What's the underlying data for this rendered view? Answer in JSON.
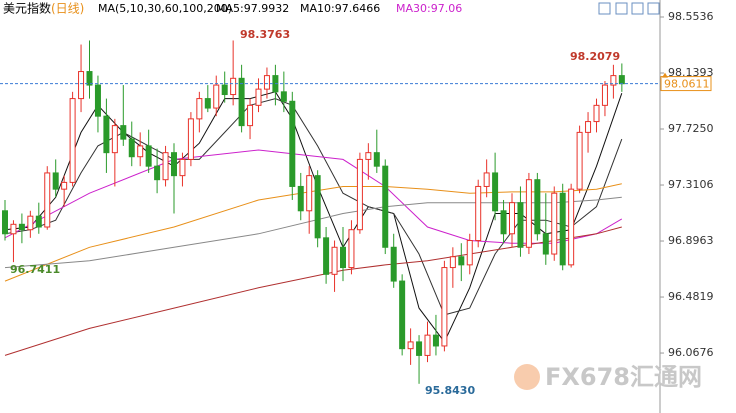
{
  "chart_data": {
    "type": "candlestick",
    "title": "美元指数",
    "subtitle": "(日线)",
    "ma_legend": [
      "MA(5,10,30,60,100,200)",
      "MA5:97.9932",
      "MA10:97.6466",
      "MA30:97.06"
    ],
    "ylim": [
      95.624,
      98.5536
    ],
    "yticks": [
      98.5536,
      98.1393,
      {
        "value": 97.725,
        "label": "97.7250"
      },
      97.3106,
      96.8963,
      96.4819,
      96.0676
    ],
    "last_price": {
      "value": 98.0611,
      "label": "98.0611"
    },
    "annotations": [
      "98.3763",
      "98.2079",
      "96.7411",
      "95.8430"
    ],
    "watermark": "FX678汇通网",
    "up_color": "#e8322a",
    "down_color": "#2a9a2a",
    "candles": [
      [
        97.12,
        97.2,
        96.9,
        96.95
      ],
      [
        96.95,
        97.05,
        96.74,
        97.02
      ],
      [
        97.02,
        97.1,
        96.88,
        96.98
      ],
      [
        96.98,
        97.12,
        96.92,
        97.08
      ],
      [
        97.08,
        97.18,
        96.95,
        97.0
      ],
      [
        97.0,
        97.45,
        96.98,
        97.4
      ],
      [
        97.4,
        97.5,
        97.22,
        97.28
      ],
      [
        97.28,
        97.38,
        97.15,
        97.33
      ],
      [
        97.33,
        98.0,
        97.3,
        97.95
      ],
      [
        97.95,
        98.35,
        97.85,
        98.15
      ],
      [
        98.15,
        98.38,
        97.95,
        98.05
      ],
      [
        98.05,
        98.12,
        97.7,
        97.82
      ],
      [
        97.82,
        97.95,
        97.4,
        97.55
      ],
      [
        97.55,
        97.8,
        97.3,
        97.75
      ],
      [
        97.75,
        98.05,
        97.6,
        97.65
      ],
      [
        97.65,
        97.78,
        97.45,
        97.52
      ],
      [
        97.52,
        97.7,
        97.45,
        97.6
      ],
      [
        97.6,
        97.72,
        97.4,
        97.45
      ],
      [
        97.45,
        97.58,
        97.25,
        97.35
      ],
      [
        97.35,
        97.6,
        97.3,
        97.55
      ],
      [
        97.55,
        97.62,
        97.1,
        97.38
      ],
      [
        97.38,
        97.55,
        97.3,
        97.5
      ],
      [
        97.5,
        97.85,
        97.45,
        97.8
      ],
      [
        97.8,
        98.0,
        97.7,
        97.95
      ],
      [
        97.95,
        98.05,
        97.85,
        97.88
      ],
      [
        97.88,
        98.12,
        97.82,
        98.05
      ],
      [
        98.05,
        98.15,
        97.92,
        97.98
      ],
      [
        97.98,
        98.38,
        97.9,
        98.1
      ],
      [
        98.1,
        98.2,
        97.7,
        97.75
      ],
      [
        97.75,
        97.95,
        97.65,
        97.9
      ],
      [
        97.9,
        98.1,
        97.85,
        98.02
      ],
      [
        98.02,
        98.18,
        97.95,
        98.12
      ],
      [
        98.12,
        98.2,
        97.9,
        98.0
      ],
      [
        98.0,
        98.15,
        97.85,
        97.93
      ],
      [
        97.93,
        98.0,
        97.2,
        97.3
      ],
      [
        97.3,
        97.4,
        97.05,
        97.12
      ],
      [
        97.12,
        97.45,
        96.95,
        97.38
      ],
      [
        97.38,
        97.42,
        96.85,
        96.92
      ],
      [
        96.92,
        97.0,
        96.58,
        96.65
      ],
      [
        96.65,
        96.9,
        96.52,
        96.85
      ],
      [
        96.85,
        97.0,
        96.6,
        96.7
      ],
      [
        96.7,
        97.05,
        96.65,
        96.98
      ],
      [
        96.98,
        97.55,
        96.95,
        97.5
      ],
      [
        97.5,
        97.62,
        97.35,
        97.55
      ],
      [
        97.55,
        97.72,
        97.4,
        97.45
      ],
      [
        97.45,
        97.5,
        96.8,
        96.85
      ],
      [
        96.85,
        96.95,
        96.55,
        96.6
      ],
      [
        96.6,
        96.65,
        96.05,
        96.1
      ],
      [
        96.1,
        96.25,
        95.98,
        96.15
      ],
      [
        96.15,
        96.2,
        95.84,
        96.05
      ],
      [
        96.05,
        96.3,
        96.0,
        96.2
      ],
      [
        96.2,
        96.35,
        96.05,
        96.12
      ],
      [
        96.12,
        96.75,
        96.08,
        96.7
      ],
      [
        96.7,
        96.85,
        96.55,
        96.78
      ],
      [
        96.78,
        96.88,
        96.6,
        96.72
      ],
      [
        96.72,
        96.95,
        96.65,
        96.9
      ],
      [
        96.9,
        97.35,
        96.85,
        97.3
      ],
      [
        97.3,
        97.5,
        97.22,
        97.4
      ],
      [
        97.4,
        97.55,
        97.05,
        97.12
      ],
      [
        97.12,
        97.2,
        96.88,
        96.95
      ],
      [
        96.95,
        97.25,
        96.85,
        97.18
      ],
      [
        97.18,
        97.3,
        96.78,
        96.85
      ],
      [
        96.85,
        97.4,
        96.8,
        97.35
      ],
      [
        97.35,
        97.4,
        96.9,
        96.95
      ],
      [
        96.95,
        97.25,
        96.72,
        96.8
      ],
      [
        96.8,
        97.3,
        96.75,
        97.25
      ],
      [
        97.25,
        97.32,
        96.68,
        96.72
      ],
      [
        96.72,
        97.32,
        96.7,
        97.28
      ],
      [
        97.28,
        97.75,
        97.25,
        97.7
      ],
      [
        97.7,
        97.85,
        97.55,
        97.78
      ],
      [
        97.78,
        97.95,
        97.7,
        97.9
      ],
      [
        97.9,
        98.08,
        97.82,
        98.05
      ],
      [
        98.05,
        98.2,
        97.95,
        98.12
      ],
      [
        98.12,
        98.21,
        98.0,
        98.06
      ]
    ],
    "series": [
      {
        "color": "#111111",
        "x": [
          0,
          3,
          6,
          9,
          11,
          14,
          17,
          20,
          23,
          26,
          29,
          32,
          34,
          37,
          40,
          43,
          46,
          49,
          52,
          55,
          58,
          61,
          64,
          67,
          70,
          73
        ],
        "values": [
          96.98,
          97.0,
          97.22,
          97.7,
          97.9,
          97.7,
          97.55,
          97.45,
          97.62,
          97.95,
          97.95,
          98.0,
          97.8,
          97.3,
          96.85,
          97.15,
          97.1,
          96.4,
          96.15,
          96.55,
          97.1,
          97.1,
          96.95,
          96.98,
          97.45,
          97.99
        ]
      },
      {
        "color": "#333333",
        "x": [
          0,
          3,
          6,
          9,
          11,
          14,
          17,
          20,
          23,
          26,
          29,
          32,
          34,
          37,
          40,
          43,
          46,
          49,
          52,
          55,
          58,
          61,
          64,
          67,
          70,
          73
        ],
        "values": [
          96.95,
          96.98,
          97.05,
          97.4,
          97.6,
          97.7,
          97.6,
          97.5,
          97.5,
          97.7,
          97.9,
          97.95,
          97.9,
          97.6,
          97.25,
          97.15,
          97.1,
          96.8,
          96.35,
          96.4,
          96.8,
          97.05,
          97.05,
          97.0,
          97.15,
          97.65
        ]
      },
      {
        "color": "#cc22cc",
        "x": [
          0,
          10,
          20,
          30,
          40,
          45,
          50,
          55,
          60,
          65,
          70,
          73
        ],
        "values": [
          96.92,
          97.25,
          97.5,
          97.57,
          97.5,
          97.3,
          97.0,
          96.9,
          96.88,
          96.88,
          96.95,
          97.06
        ]
      },
      {
        "color": "#e8901a",
        "x": [
          0,
          10,
          20,
          30,
          40,
          45,
          50,
          55,
          60,
          65,
          70,
          73
        ],
        "values": [
          96.6,
          96.85,
          97.0,
          97.2,
          97.3,
          97.3,
          97.28,
          97.25,
          97.26,
          97.26,
          97.28,
          97.32
        ]
      },
      {
        "color": "#888888",
        "x": [
          0,
          10,
          20,
          30,
          40,
          45,
          50,
          55,
          60,
          65,
          70,
          73
        ],
        "values": [
          96.7,
          96.75,
          96.85,
          96.95,
          97.1,
          97.15,
          97.18,
          97.18,
          97.18,
          97.18,
          97.2,
          97.22
        ]
      },
      {
        "color": "#b03030",
        "x": [
          0,
          10,
          20,
          30,
          40,
          45,
          50,
          55,
          60,
          65,
          70,
          73
        ],
        "values": [
          96.05,
          96.25,
          96.4,
          96.55,
          96.68,
          96.72,
          96.75,
          96.8,
          96.85,
          96.9,
          96.95,
          97.0
        ]
      }
    ]
  }
}
